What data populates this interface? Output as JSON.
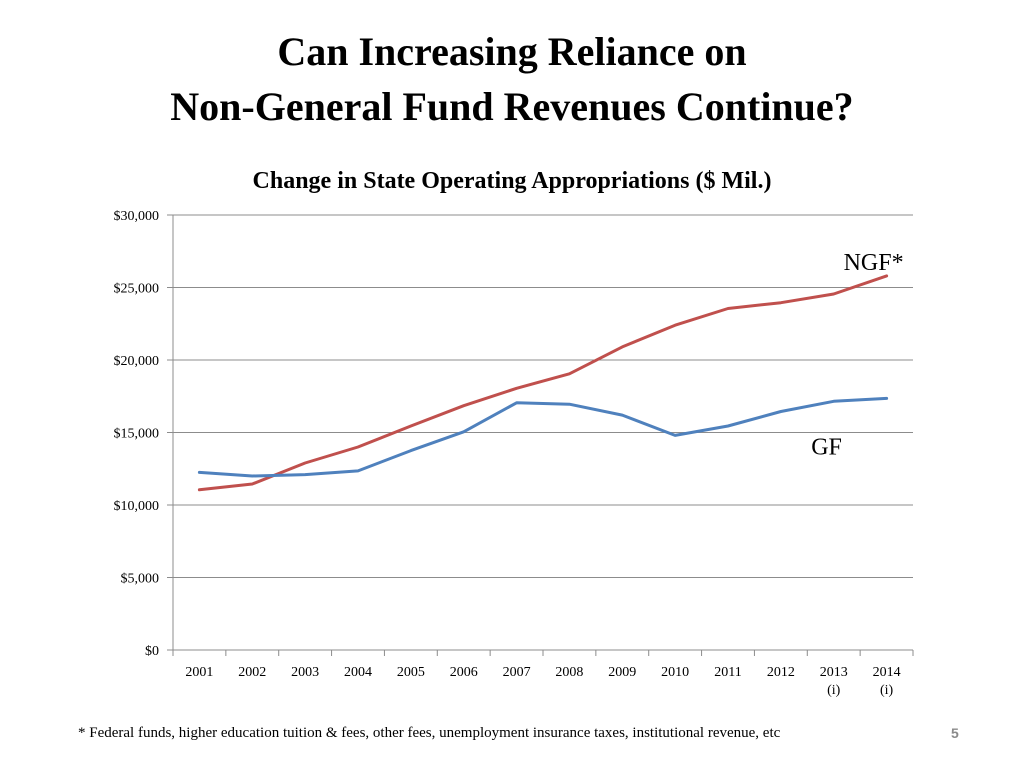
{
  "slide": {
    "title_line1": "Can Increasing Reliance on",
    "title_line2": "Non-General Fund Revenues Continue?",
    "footnote": "* Federal funds, higher education tuition & fees, other fees, unemployment insurance taxes, institutional revenue, etc",
    "page_number": "5"
  },
  "chart_data": {
    "type": "line",
    "title": "Change in State Operating Appropriations ($ Mil.)",
    "xlabel": "",
    "ylabel": "",
    "categories": [
      "2001",
      "2002",
      "2003",
      "2004",
      "2005",
      "2006",
      "2007",
      "2008",
      "2009",
      "2010",
      "2011",
      "2012",
      "2013",
      "2014"
    ],
    "category_sublabels": [
      "",
      "",
      "",
      "",
      "",
      "",
      "",
      "",
      "",
      "",
      "",
      "",
      "(i)",
      "(i)"
    ],
    "ylim": [
      0,
      30000
    ],
    "yticks": [
      0,
      5000,
      10000,
      15000,
      20000,
      25000,
      30000
    ],
    "ytick_labels": [
      "$0",
      "$5,000",
      "$10,000",
      "$15,000",
      "$20,000",
      "$25,000",
      "$30,000"
    ],
    "grid": true,
    "series": [
      {
        "name": "NGF*",
        "color": "#C0504D",
        "values": [
          11050,
          11450,
          12900,
          14000,
          15450,
          16850,
          18050,
          19050,
          20900,
          22400,
          23550,
          23950,
          24550,
          25800
        ]
      },
      {
        "name": "GF",
        "color": "#4F81BD",
        "values": [
          12250,
          12000,
          12100,
          12350,
          13750,
          15050,
          17050,
          16950,
          16200,
          14800,
          15450,
          16450,
          17150,
          17350
        ]
      }
    ],
    "annotations": [
      {
        "text": "NGF*",
        "series": 0
      },
      {
        "text": "GF",
        "series": 1
      }
    ]
  }
}
